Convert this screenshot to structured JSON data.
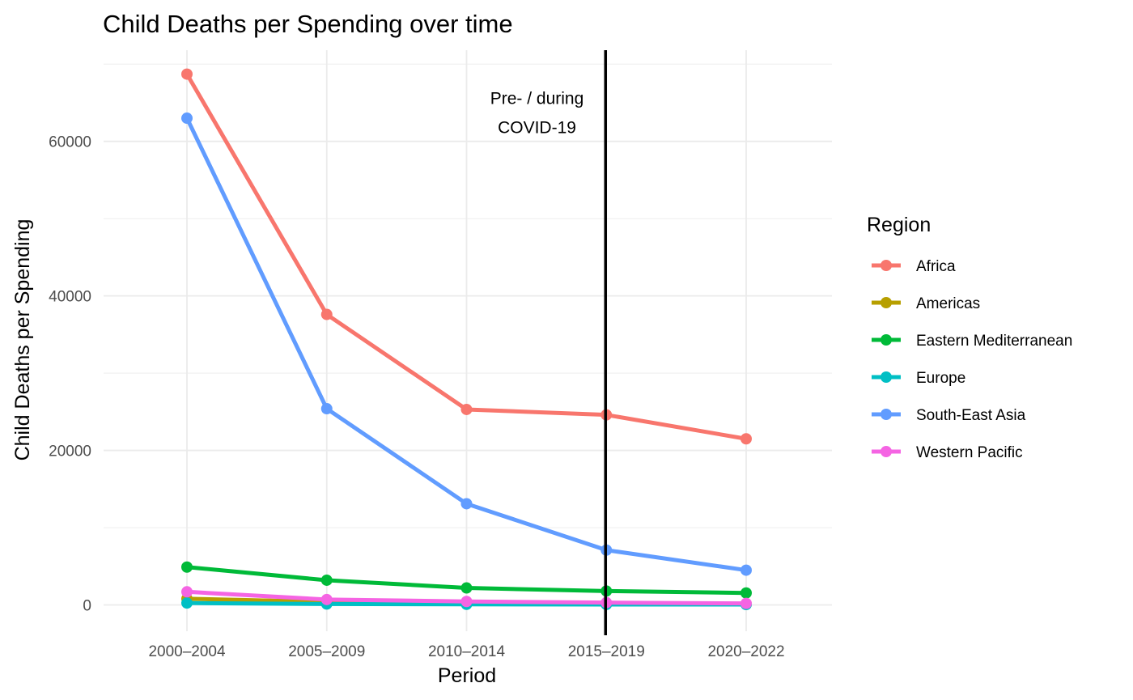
{
  "chart_data": {
    "type": "line",
    "title": "Child Deaths per Spending over time",
    "xlabel": "Period",
    "ylabel": "Child Deaths per Spending",
    "categories": [
      "2000–2004",
      "2005–2009",
      "2010–2014",
      "2015–2019",
      "2020–2022"
    ],
    "ylim": [
      -3400,
      71800
    ],
    "yticks": [
      0,
      20000,
      40000,
      60000
    ],
    "grid": true,
    "legend": {
      "title": "Region",
      "position": "right"
    },
    "vline": {
      "category": "2015–2019",
      "color": "#000000"
    },
    "annotation": {
      "lines": [
        "Pre- / during",
        "COVID-19"
      ],
      "near_category": "2010–2014",
      "y": 61500
    },
    "series": [
      {
        "name": "Africa",
        "color": "#F8766D",
        "values": [
          68700,
          37600,
          25300,
          24600,
          21500
        ]
      },
      {
        "name": "Americas",
        "color": "#B79F00",
        "values": [
          800,
          400,
          250,
          180,
          120
        ]
      },
      {
        "name": "Eastern Mediterranean",
        "color": "#00BA38",
        "values": [
          4900,
          3200,
          2200,
          1800,
          1550
        ]
      },
      {
        "name": "Europe",
        "color": "#00BFC4",
        "values": [
          250,
          120,
          80,
          60,
          50
        ]
      },
      {
        "name": "South-East Asia",
        "color": "#619CFF",
        "values": [
          63000,
          25400,
          13100,
          7100,
          4500
        ]
      },
      {
        "name": "Western Pacific",
        "color": "#F564E3",
        "values": [
          1700,
          700,
          450,
          300,
          200
        ]
      }
    ]
  }
}
